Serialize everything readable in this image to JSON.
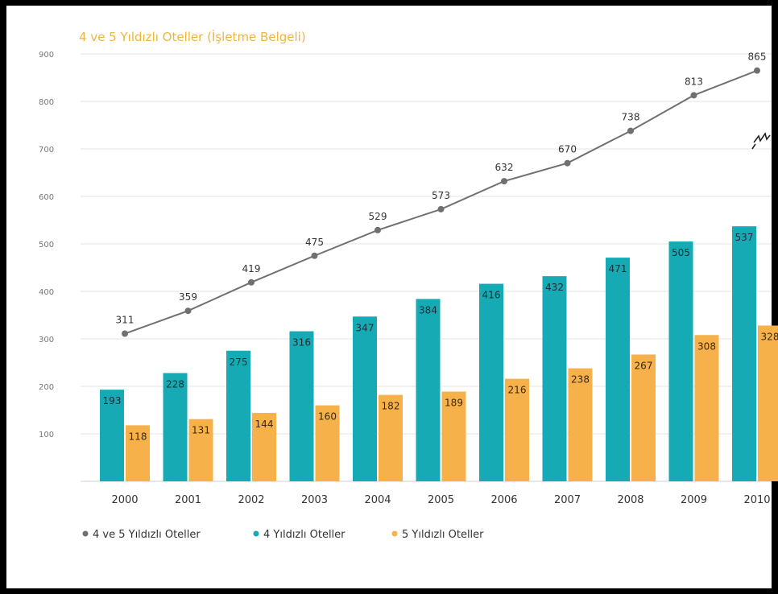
{
  "chart_data": {
    "type": "bar",
    "title": "4 ve 5 Yıldızlı Oteller (İşletme Belgeli)",
    "categories": [
      "2000",
      "2001",
      "2002",
      "2003",
      "2004",
      "2005",
      "2006",
      "2007",
      "2008",
      "2009",
      "2010"
    ],
    "series": [
      {
        "name": "4 ve 5 Yıldızlı Oteller",
        "type": "line",
        "color": "#707070",
        "values": [
          311,
          359,
          419,
          475,
          529,
          573,
          632,
          670,
          738,
          813,
          865
        ]
      },
      {
        "name": "4 Yıldızlı Oteller",
        "type": "bar",
        "color": "#16aab4",
        "values": [
          193,
          228,
          275,
          316,
          347,
          384,
          416,
          432,
          471,
          505,
          537
        ]
      },
      {
        "name": "5 Yıldızlı Oteller",
        "type": "bar",
        "color": "#f6b14a",
        "values": [
          118,
          131,
          144,
          160,
          182,
          189,
          216,
          238,
          267,
          308,
          328
        ]
      }
    ],
    "yticks": [
      "100",
      "200",
      "300",
      "400",
      "500",
      "600",
      "700",
      "800",
      "900"
    ],
    "ylim": [
      0,
      900
    ],
    "grid": true,
    "legend": "bottom-left",
    "title_color": "#f0b43c"
  }
}
